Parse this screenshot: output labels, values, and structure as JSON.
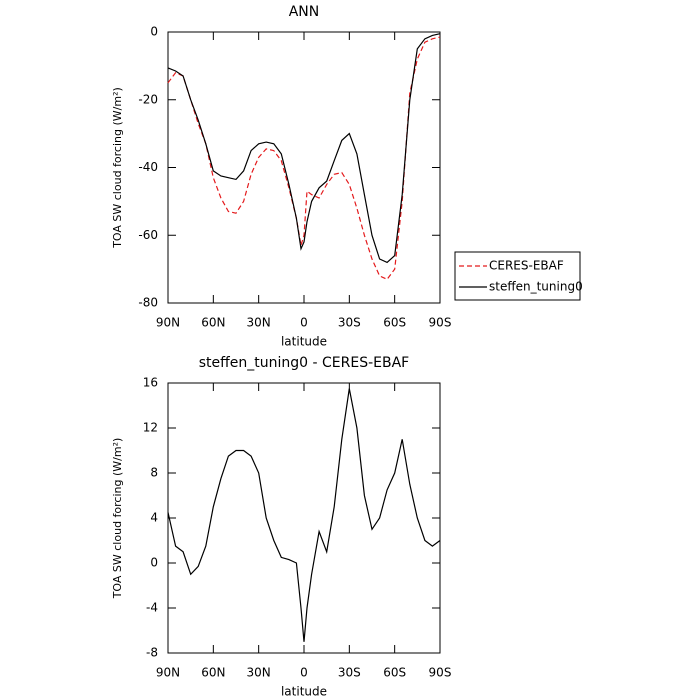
{
  "chart_data": [
    {
      "type": "line",
      "title": "ANN",
      "xlabel": "latitude",
      "ylabel": "TOA SW cloud forcing (W/m²)",
      "x": [
        90,
        85,
        80,
        75,
        70,
        65,
        60,
        55,
        50,
        45,
        40,
        35,
        30,
        25,
        20,
        15,
        10,
        5,
        2,
        0,
        -2,
        -5,
        -10,
        -15,
        -20,
        -25,
        -30,
        -35,
        -40,
        -45,
        -50,
        -55,
        -60,
        -65,
        -70,
        -75,
        -80,
        -85,
        -90
      ],
      "series": [
        {
          "name": "CERES-EBAF",
          "color": "#e41a1c",
          "linestyle": "dashed",
          "values": [
            -15,
            -12,
            -13,
            -20,
            -27,
            -33,
            -43,
            -49,
            -53,
            -53.5,
            -50,
            -42,
            -37,
            -34.5,
            -35,
            -38,
            -46,
            -55,
            -63,
            -60,
            -47,
            -48,
            -49,
            -45,
            -42,
            -41.5,
            -45,
            -52,
            -60,
            -67,
            -72,
            -73,
            -70,
            -50,
            -18,
            -8,
            -3,
            -2,
            -1.5
          ]
        },
        {
          "name": "steffen_tuning0",
          "color": "#000000",
          "linestyle": "solid",
          "values": [
            -10.6,
            -11.5,
            -13,
            -20,
            -26,
            -33,
            -41,
            -42.5,
            -43,
            -43.5,
            -41,
            -35,
            -33,
            -32.5,
            -33,
            -36,
            -45,
            -55,
            -64,
            -62,
            -56,
            -50,
            -46,
            -44,
            -38,
            -32,
            -30,
            -36,
            -48,
            -60,
            -67,
            -68,
            -66,
            -48,
            -20,
            -5,
            -2,
            -1,
            -0.5
          ]
        }
      ],
      "xlim": [
        90,
        -90
      ],
      "xticks": [
        {
          "value": 90,
          "label": "90N"
        },
        {
          "value": 60,
          "label": "60N"
        },
        {
          "value": 30,
          "label": "30N"
        },
        0,
        {
          "value": -30,
          "label": "30S"
        },
        {
          "value": -60,
          "label": "60S"
        },
        {
          "value": -90,
          "label": "90S"
        }
      ],
      "ylim": [
        -80,
        0
      ],
      "yticks": [
        -80,
        -60,
        -40,
        -20,
        0
      ],
      "legend": "right"
    },
    {
      "type": "line",
      "title": "steffen_tuning0 - CERES-EBAF",
      "xlabel": "latitude",
      "ylabel": "TOA SW cloud forcing (W/m²)",
      "x": [
        90,
        85,
        80,
        75,
        70,
        65,
        60,
        55,
        50,
        45,
        40,
        35,
        30,
        25,
        20,
        15,
        10,
        5,
        2,
        0,
        -2,
        -5,
        -10,
        -15,
        -20,
        -25,
        -30,
        -35,
        -40,
        -45,
        -50,
        -55,
        -60,
        -65,
        -70,
        -75,
        -80,
        -85,
        -90
      ],
      "series": [
        {
          "color": "#000000",
          "linestyle": "solid",
          "values": [
            4.5,
            1.5,
            1,
            -1,
            -0.3,
            1.5,
            5,
            7.5,
            9.5,
            10,
            10,
            9.5,
            8,
            4,
            2,
            0.5,
            0.3,
            0,
            -4,
            -7,
            -4,
            -1,
            2.8,
            1,
            5,
            11,
            15.5,
            12,
            6,
            3,
            4,
            6.5,
            8,
            11,
            7,
            4,
            2,
            1.5,
            2
          ]
        }
      ],
      "xlim": [
        90,
        -90
      ],
      "xticks": [
        {
          "value": 90,
          "label": "90N"
        },
        {
          "value": 60,
          "label": "60N"
        },
        {
          "value": 30,
          "label": "30N"
        },
        0,
        {
          "value": -30,
          "label": "30S"
        },
        {
          "value": -60,
          "label": "60S"
        },
        {
          "value": -90,
          "label": "90S"
        }
      ],
      "ylim": [
        -8,
        16
      ],
      "yticks": [
        -8,
        -4,
        0,
        4,
        8,
        12,
        16
      ]
    }
  ]
}
